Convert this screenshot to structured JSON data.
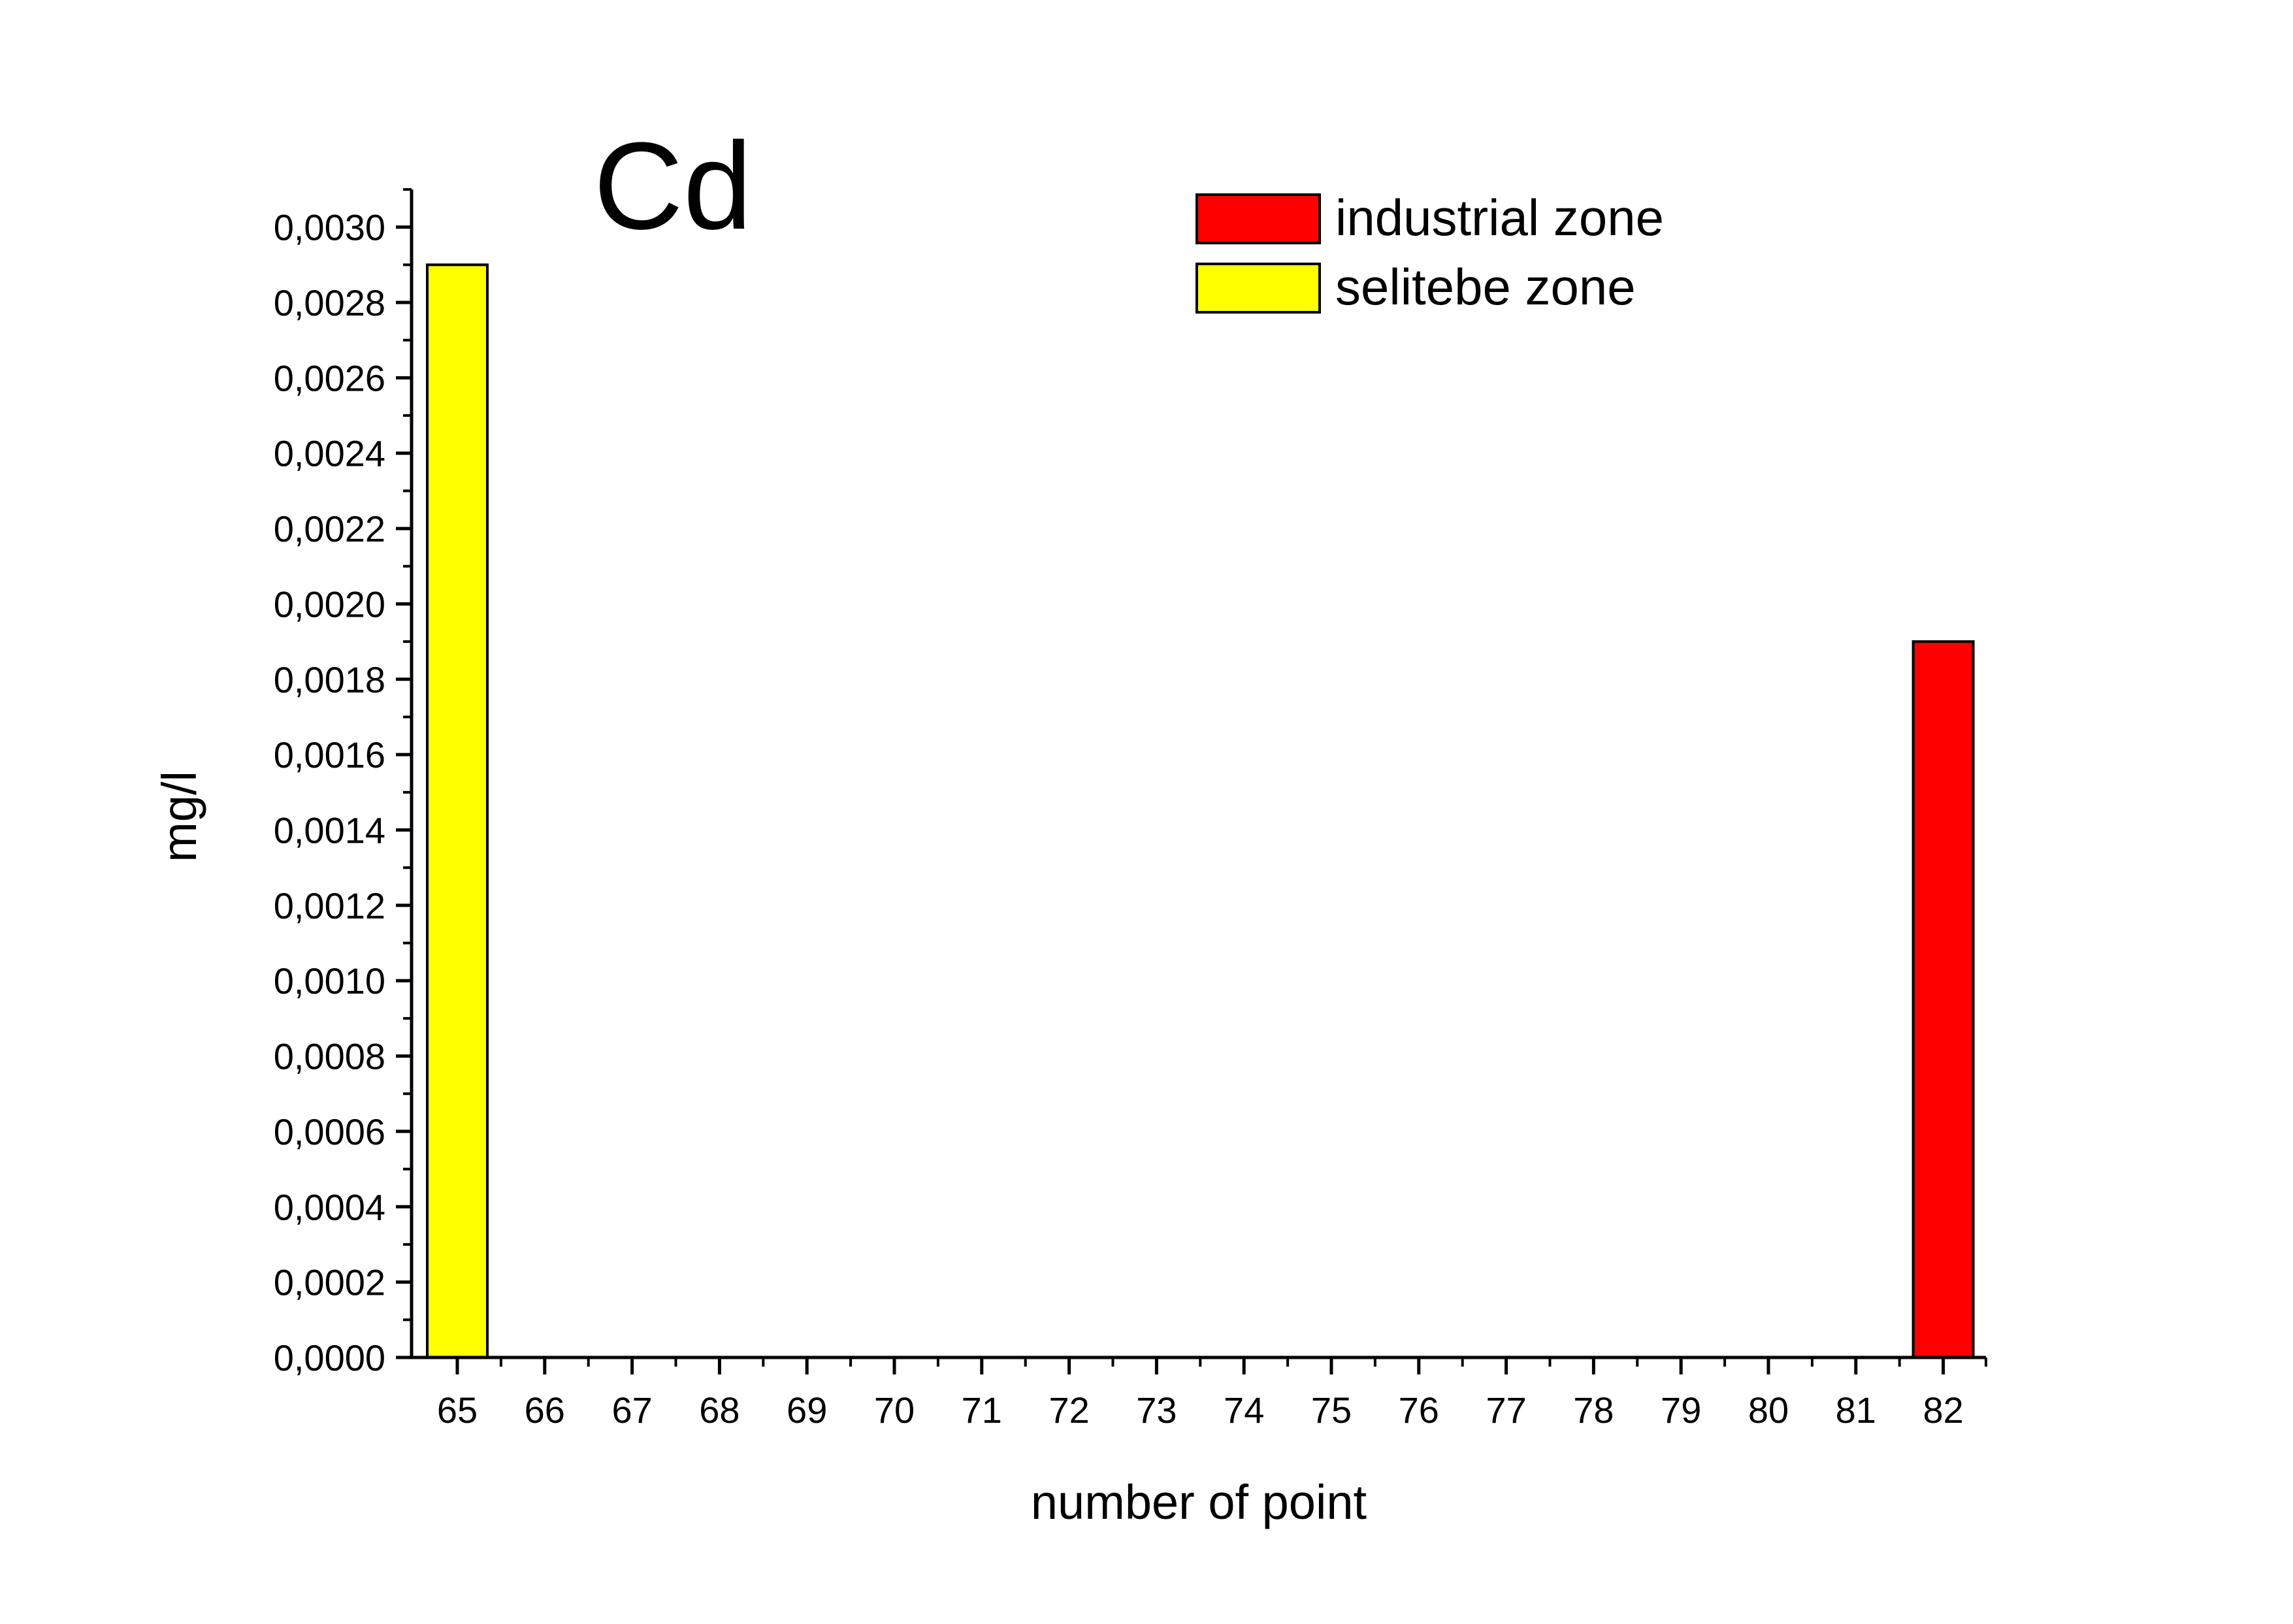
{
  "chart_data": {
    "type": "bar",
    "title": "Cd",
    "xlabel": "number of point",
    "ylabel": "mg/l",
    "categories": [
      "65",
      "66",
      "67",
      "68",
      "69",
      "70",
      "71",
      "72",
      "73",
      "74",
      "75",
      "76",
      "77",
      "78",
      "79",
      "80",
      "81",
      "82"
    ],
    "series": [
      {
        "name": "industrial zone",
        "color": "#ff0000",
        "values": [
          null,
          null,
          null,
          null,
          null,
          null,
          null,
          null,
          null,
          null,
          null,
          null,
          null,
          null,
          null,
          null,
          null,
          0.0019
        ]
      },
      {
        "name": "selitebe zone",
        "color": "#ffff00",
        "values": [
          0.0029,
          null,
          null,
          null,
          null,
          null,
          null,
          null,
          null,
          null,
          null,
          null,
          null,
          null,
          null,
          null,
          null,
          null
        ]
      }
    ],
    "ylim": [
      0,
      0.0031
    ],
    "yticks": [
      "0,0000",
      "0,0002",
      "0,0004",
      "0,0006",
      "0,0008",
      "0,0010",
      "0,0012",
      "0,0014",
      "0,0016",
      "0,0018",
      "0,0020",
      "0,0022",
      "0,0024",
      "0,0026",
      "0,0028",
      "0,0030"
    ],
    "ytick_values": [
      0,
      0.0002,
      0.0004,
      0.0006,
      0.0008,
      0.001,
      0.0012,
      0.0014,
      0.0016,
      0.0018,
      0.002,
      0.0022,
      0.0024,
      0.0026,
      0.0028,
      0.003
    ],
    "grid": false,
    "legend": {
      "placement": "top-right"
    }
  }
}
